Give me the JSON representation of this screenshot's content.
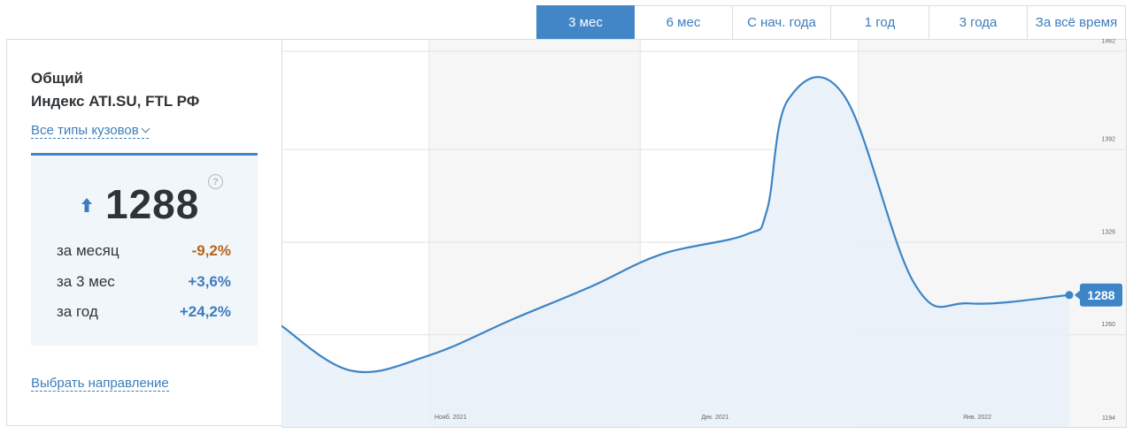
{
  "tabs": [
    {
      "label": "3 мес",
      "active": true
    },
    {
      "label": "6 мес",
      "active": false
    },
    {
      "label": "С нач. года",
      "active": false
    },
    {
      "label": "1 год",
      "active": false
    },
    {
      "label": "3 года",
      "active": false
    },
    {
      "label": "За всё время",
      "active": false
    }
  ],
  "panel": {
    "title1": "Общий",
    "title2": "Индекс ATI.SU, FTL РФ",
    "body_types": "Все типы кузовов",
    "value": "1288",
    "help": "?",
    "rows": [
      {
        "label": "за месяц",
        "value": "-9,2%",
        "kind": "neg"
      },
      {
        "label": "за 3 мес",
        "value": "+3,6%",
        "kind": "pos"
      },
      {
        "label": "за год",
        "value": "+24,2%",
        "kind": "pos"
      }
    ],
    "choose": "Выбрать направление"
  },
  "chart_data": {
    "type": "area",
    "y_ticks": [
      1462,
      1392,
      1326,
      1260,
      1194
    ],
    "ylim": [
      1194,
      1468
    ],
    "month_labels": [
      "Нояб. 2021",
      "Дек. 2021",
      "Янв. 2022"
    ],
    "last_value_label": "1288",
    "color": "#3d85c6",
    "fill": "#e9f0f8",
    "points": [
      {
        "x": "2021-10-11",
        "y": 1266
      },
      {
        "x": "2021-10-21",
        "y": 1234
      },
      {
        "x": "2021-11-01",
        "y": 1245
      },
      {
        "x": "2021-11-13",
        "y": 1271
      },
      {
        "x": "2021-11-24",
        "y": 1294
      },
      {
        "x": "2021-12-04",
        "y": 1317
      },
      {
        "x": "2021-12-16",
        "y": 1331
      },
      {
        "x": "2021-12-19",
        "y": 1348
      },
      {
        "x": "2021-12-22",
        "y": 1427
      },
      {
        "x": "2021-12-30",
        "y": 1430
      },
      {
        "x": "2022-01-09",
        "y": 1296
      },
      {
        "x": "2022-01-17",
        "y": 1282
      },
      {
        "x": "2022-01-31",
        "y": 1288
      }
    ]
  }
}
